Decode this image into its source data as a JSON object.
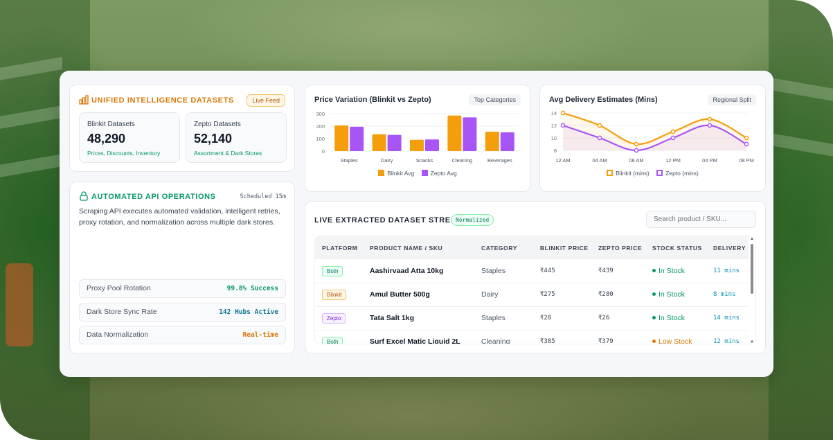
{
  "colors": {
    "blinkit": "#f59e0b",
    "zepto": "#a855f7",
    "accent_orange": "#d97706",
    "accent_green": "#059669"
  },
  "datasets": {
    "title": "UNIFIED INTELLIGENCE DATASETS",
    "badge": "Live Feed",
    "icon": "bar-chart-icon",
    "boxes": [
      {
        "label": "Blinkit Datasets",
        "value": "48,290",
        "sub": "Prices, Discounts, Inventory"
      },
      {
        "label": "Zepto Datasets",
        "value": "52,140",
        "sub": "Assortment & Dark Stores"
      }
    ]
  },
  "automation": {
    "title": "AUTOMATED API OPERATIONS",
    "icon": "lock-icon",
    "schedule": "Scheduled 15m",
    "description": "Scraping API executes automated validation, intelligent retries, proxy rotation, and normalization across multiple dark stores.",
    "metrics": [
      {
        "label": "Proxy Pool Rotation",
        "value": "99.8% Success",
        "color": "#059669"
      },
      {
        "label": "Dark Store Sync Rate",
        "value": "142 Hubs Active",
        "color": "#0e7490"
      },
      {
        "label": "Data Normalization",
        "value": "Real-time",
        "color": "#d97706"
      }
    ]
  },
  "price_chart": {
    "title": "Price Variation (Blinkit vs Zepto)",
    "badge": "Top Categories",
    "legend": [
      "Blinkit Avg",
      "Zepto Avg"
    ]
  },
  "delivery_chart": {
    "title": "Avg Delivery Estimates (Mins)",
    "badge": "Regional Split",
    "legend": [
      "Blinkit (mins)",
      "Zepto (mins)"
    ]
  },
  "chart_data": [
    {
      "type": "bar",
      "title": "Price Variation (Blinkit vs Zepto)",
      "categories": [
        "Staples",
        "Dairy",
        "Snacks",
        "Cleaning",
        "Beverages"
      ],
      "series": [
        {
          "name": "Blinkit Avg",
          "values": [
            205,
            135,
            90,
            285,
            155
          ]
        },
        {
          "name": "Zepto Avg",
          "values": [
            195,
            130,
            93,
            270,
            150
          ]
        }
      ],
      "ylim": [
        0,
        300
      ],
      "yticks": [
        "300",
        "200",
        "100",
        "0"
      ],
      "grid": true,
      "legend_position": "bottom"
    },
    {
      "type": "line",
      "title": "Avg Delivery Estimates (Mins)",
      "x": [
        "12 AM",
        "04 AM",
        "08 AM",
        "12 PM",
        "04 PM",
        "08 PM"
      ],
      "series": [
        {
          "name": "Blinkit (mins)",
          "values": [
            14,
            12,
            9,
            11,
            13,
            10
          ]
        },
        {
          "name": "Zepto (mins)",
          "values": [
            12,
            10,
            8,
            10,
            12,
            9
          ]
        }
      ],
      "ylim": [
        8,
        14
      ],
      "yticks": [
        "14",
        "12",
        "10",
        "8"
      ],
      "grid": true,
      "legend_position": "bottom"
    }
  ],
  "stream": {
    "title": "LIVE EXTRACTED DATASET STREAM",
    "badge": "Normalized",
    "search_placeholder": "Search product / SKU...",
    "columns": [
      "PLATFORM",
      "PRODUCT NAME / SKU",
      "CATEGORY",
      "BLINKIT PRICE",
      "ZEPTO PRICE",
      "STOCK STATUS",
      "DELIVERY"
    ],
    "rows": [
      {
        "platform": "Both",
        "product": "Aashirvaad Atta 10kg",
        "category": "Staples",
        "blinkit": "₹445",
        "zepto": "₹439",
        "stock": "In Stock",
        "delivery": "11 mins"
      },
      {
        "platform": "Blinkit",
        "product": "Amul Butter 500g",
        "category": "Dairy",
        "blinkit": "₹275",
        "zepto": "₹280",
        "stock": "In Stock",
        "delivery": "8 mins"
      },
      {
        "platform": "Zepto",
        "product": "Tata Salt 1kg",
        "category": "Staples",
        "blinkit": "₹28",
        "zepto": "₹26",
        "stock": "In Stock",
        "delivery": "14 mins"
      },
      {
        "platform": "Both",
        "product": "Surf Excel Matic Liquid 2L",
        "category": "Cleaning",
        "blinkit": "₹385",
        "zepto": "₹379",
        "stock": "Low Stock",
        "delivery": "12 mins"
      }
    ]
  }
}
